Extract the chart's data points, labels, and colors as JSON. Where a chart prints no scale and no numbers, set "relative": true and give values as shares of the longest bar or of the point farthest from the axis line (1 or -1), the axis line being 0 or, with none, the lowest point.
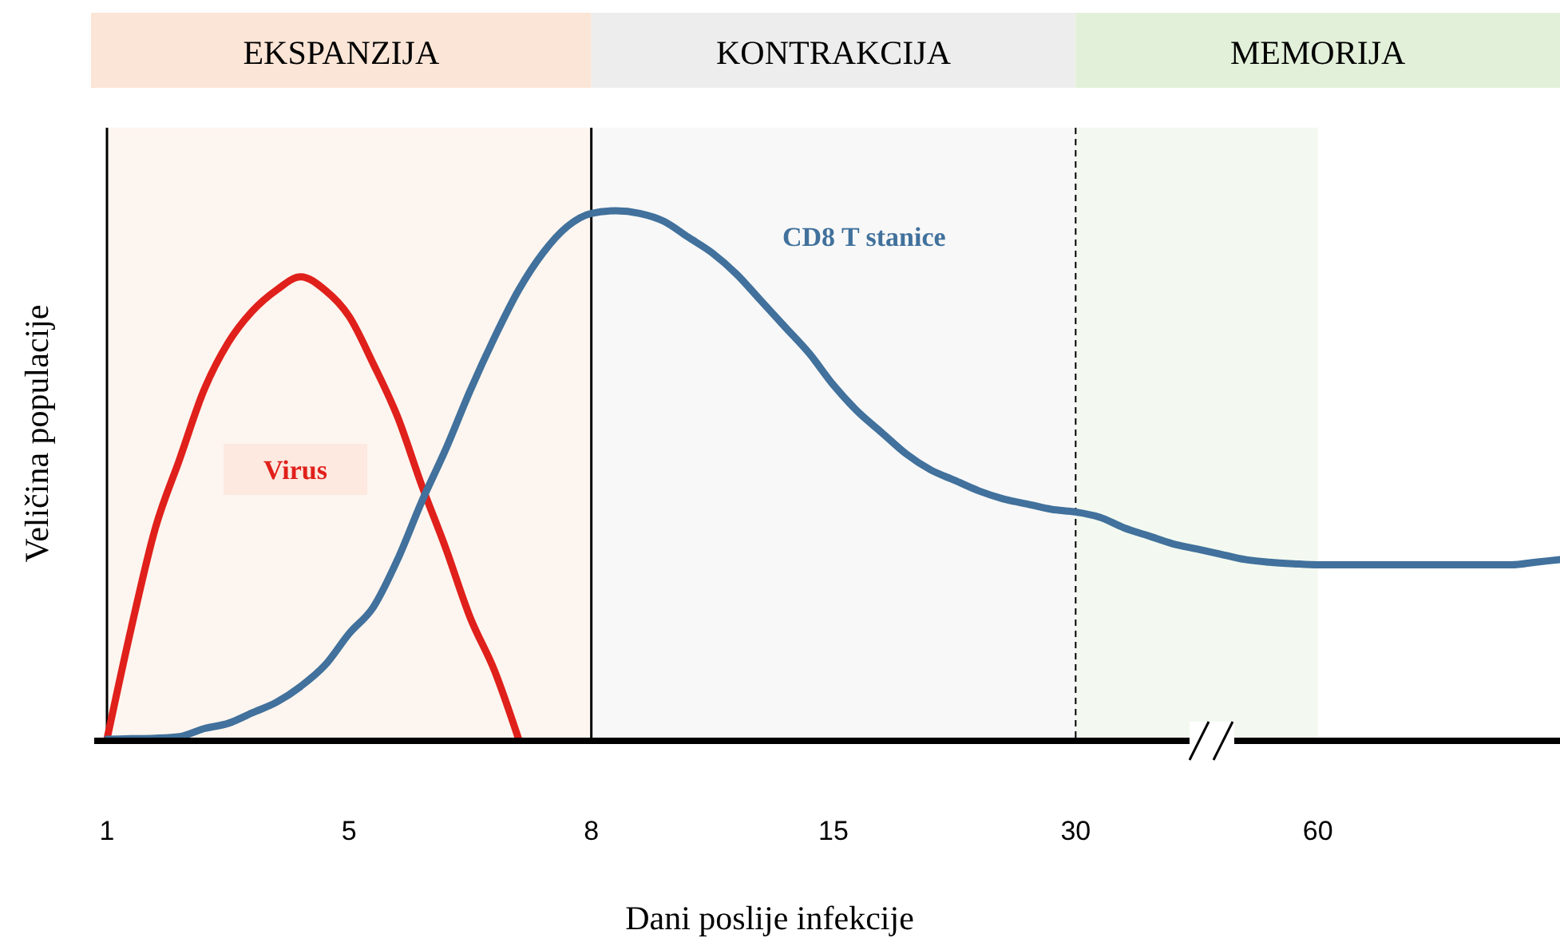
{
  "chart_data": {
    "type": "line",
    "relative": true,
    "xlabel": "Dani poslije infekcije",
    "ylabel": "Veličina populacije",
    "categories": [
      "1",
      null,
      null,
      null,
      null,
      null,
      null,
      null,
      null,
      null,
      "5",
      null,
      null,
      null,
      null,
      null,
      null,
      null,
      null,
      null,
      "8",
      null,
      null,
      null,
      null,
      null,
      null,
      null,
      null,
      null,
      "15",
      null,
      null,
      null,
      null,
      null,
      null,
      null,
      null,
      null,
      "30",
      null,
      null,
      null,
      null,
      null,
      null,
      null,
      null,
      null,
      "60",
      null,
      null,
      null,
      null,
      null,
      null,
      null,
      null,
      null,
      null
    ],
    "bands": [
      {
        "axis": "x",
        "from": "1",
        "to": "8",
        "label": "EKSPANZIJA",
        "color": "#fbe5d6"
      },
      {
        "axis": "x",
        "from": "8",
        "to": "30",
        "label": "KONTRAKCIJA",
        "color": "#ededed"
      },
      {
        "axis": "x",
        "from": "30",
        "to": "60",
        "label": "MEMORIJA",
        "color": "#e2f0d9"
      }
    ],
    "ref_lines": [
      {
        "axis": "x",
        "value": "8",
        "color": "#000000",
        "line_style": "solid"
      },
      {
        "axis": "x",
        "value": "30",
        "color": "#000000",
        "line_style": "dashed"
      }
    ],
    "series": [
      {
        "name": "Virus",
        "color": "#e0201b",
        "values": [
          0,
          0.21,
          0.4,
          0.53,
          0.66,
          0.75,
          0.81,
          0.85,
          0.875,
          0.85,
          0.8,
          0.71,
          0.61,
          0.48,
          0.36,
          0.23,
          0.13,
          0,
          null,
          null,
          null,
          null,
          null,
          null,
          null,
          null,
          null,
          null,
          null,
          null,
          null,
          null,
          null,
          null,
          null,
          null,
          null,
          null,
          null,
          null,
          null,
          null,
          null,
          null,
          null,
          null,
          null,
          null,
          null,
          null,
          null,
          null,
          null,
          null,
          null,
          null,
          null,
          null,
          null,
          null,
          null
        ]
      },
      {
        "name": "CD8 T stanice",
        "color": "#41719c",
        "values": [
          0,
          0.001,
          0.002,
          0.005,
          0.02,
          0.03,
          0.05,
          0.07,
          0.1,
          0.14,
          0.2,
          0.25,
          0.34,
          0.45,
          0.55,
          0.66,
          0.76,
          0.85,
          0.92,
          0.97,
          0.995,
          1,
          0.995,
          0.98,
          0.95,
          0.92,
          0.88,
          0.83,
          0.78,
          0.73,
          0.67,
          0.62,
          0.58,
          0.54,
          0.51,
          0.49,
          0.47,
          0.455,
          0.445,
          0.435,
          0.43,
          0.42,
          0.4,
          0.385,
          0.37,
          0.36,
          0.35,
          0.34,
          0.335,
          0.332,
          0.33,
          0.33,
          0.33,
          0.33,
          0.33,
          0.33,
          0.33,
          0.33,
          0.33,
          0.335,
          0.34
        ]
      }
    ]
  }
}
